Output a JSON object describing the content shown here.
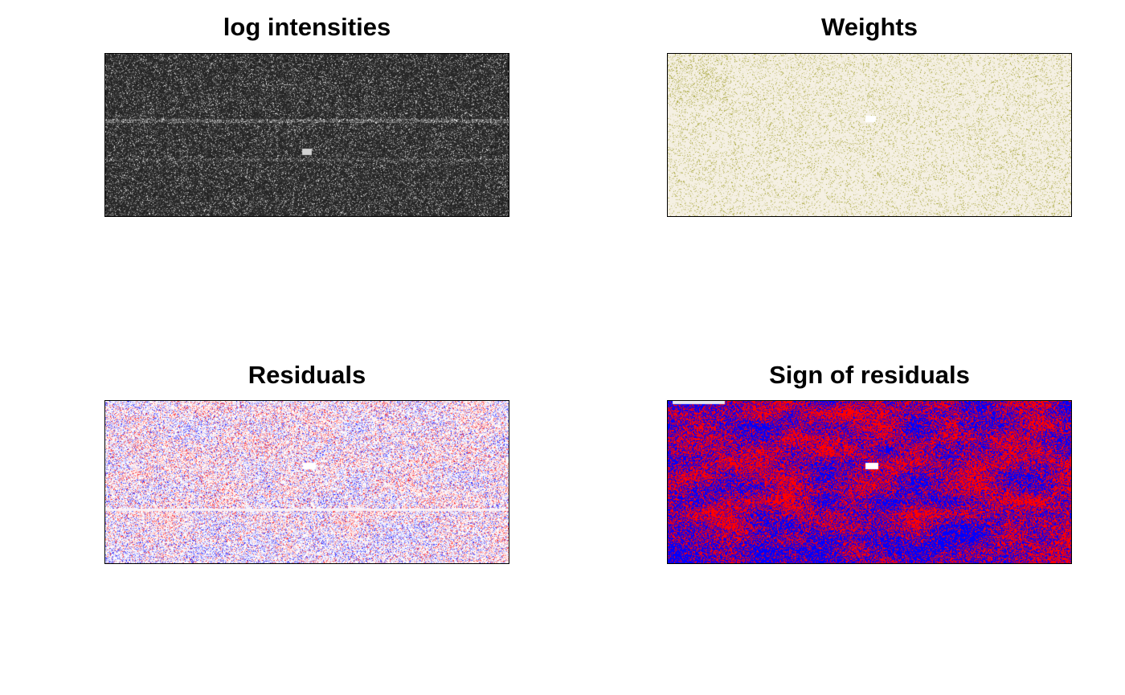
{
  "chart_data": [
    {
      "type": "heatmap",
      "title": "log intensities",
      "xlabel": "",
      "ylabel": "",
      "colors": {
        "low": "#1c1c1c",
        "high": "#ffffff"
      }
    },
    {
      "type": "heatmap",
      "title": "Weights",
      "xlabel": "",
      "ylabel": "",
      "colors": {
        "low": "#8c8c00",
        "high": "#f5f0e3"
      }
    },
    {
      "type": "heatmap",
      "title": "Residuals",
      "xlabel": "",
      "ylabel": "",
      "colors": {
        "negative": "#0000ff",
        "zero": "#ffffff",
        "positive": "#ff0000"
      }
    },
    {
      "type": "heatmap",
      "title": "Sign of residuals",
      "xlabel": "",
      "ylabel": "",
      "colors": {
        "negative": "#0000ff",
        "positive": "#ff0000"
      }
    }
  ]
}
